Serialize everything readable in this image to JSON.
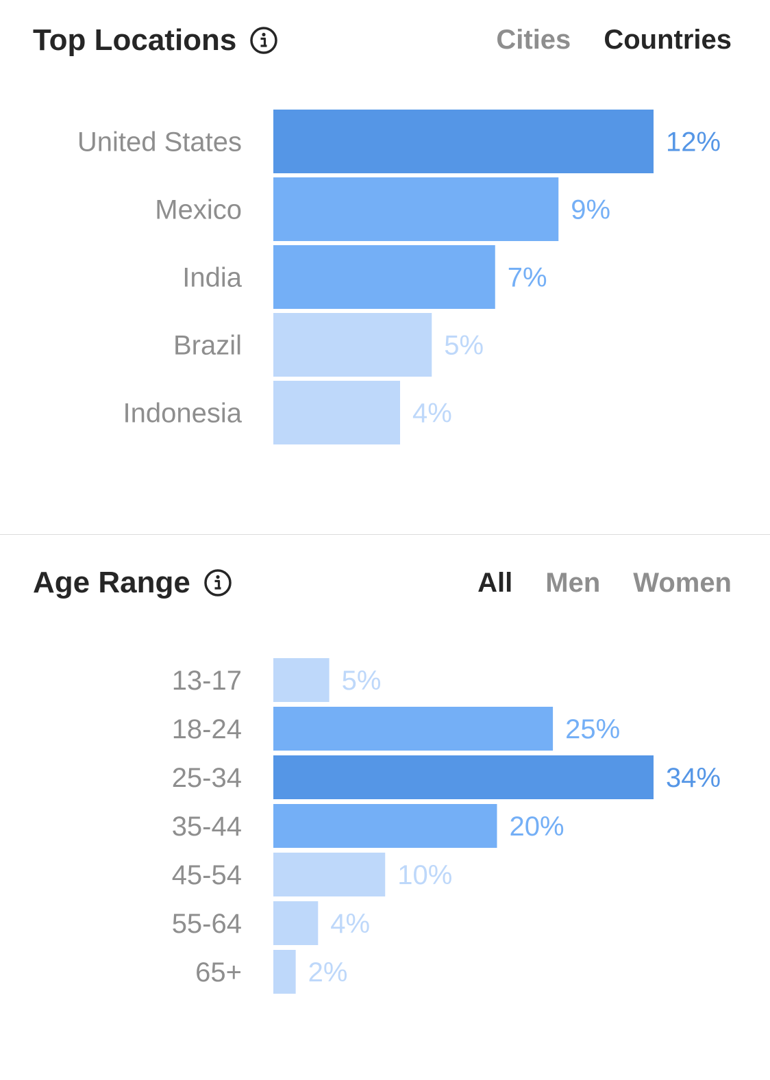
{
  "locations": {
    "title": "Top Locations",
    "tabs": [
      {
        "label": "Cities",
        "active": false
      },
      {
        "label": "Countries",
        "active": true
      }
    ],
    "chart_data": {
      "type": "bar",
      "orientation": "horizontal",
      "categories": [
        "United States",
        "Mexico",
        "India",
        "Brazil",
        "Indonesia"
      ],
      "values": [
        12,
        9,
        7,
        5,
        4
      ],
      "value_labels": [
        "12%",
        "9%",
        "7%",
        "5%",
        "4%"
      ],
      "unit": "%",
      "xlim": [
        0,
        12
      ]
    }
  },
  "age_range": {
    "title": "Age Range",
    "tabs": [
      {
        "label": "All",
        "active": true
      },
      {
        "label": "Men",
        "active": false
      },
      {
        "label": "Women",
        "active": false
      }
    ],
    "chart_data": {
      "type": "bar",
      "orientation": "horizontal",
      "categories": [
        "13-17",
        "18-24",
        "25-34",
        "35-44",
        "45-54",
        "55-64",
        "65+"
      ],
      "values": [
        5,
        25,
        34,
        20,
        10,
        4,
        2
      ],
      "value_labels": [
        "5%",
        "25%",
        "34%",
        "20%",
        "10%",
        "4%",
        "2%"
      ],
      "unit": "%",
      "xlim": [
        0,
        34
      ]
    }
  },
  "colors": {
    "bar_dark": "#5596e6",
    "bar_mid": "#74aff6",
    "bar_light": "#9bc7f8",
    "bar_pale": "#bed8fa",
    "label_dark": "#5596e6",
    "label_mid": "#74aff6",
    "label_light": "#9bc7f8",
    "label_pale": "#bed8fa"
  }
}
